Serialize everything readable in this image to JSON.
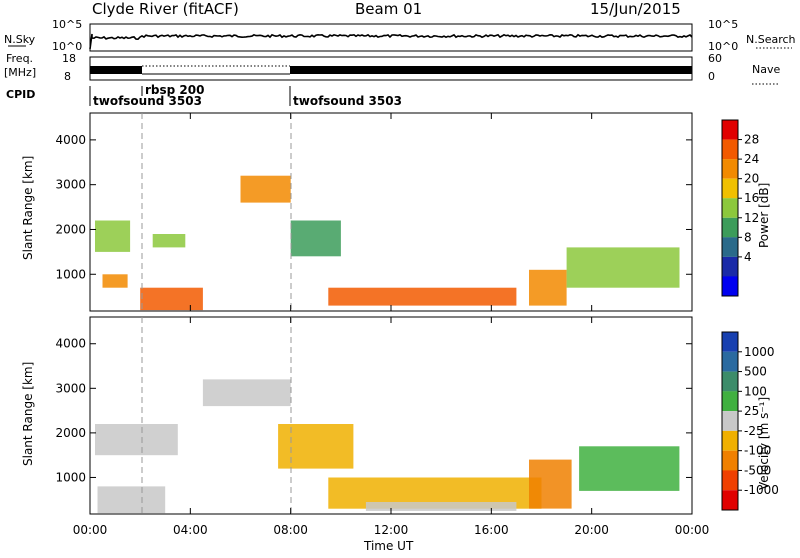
{
  "header": {
    "station": "Clyde River (fitACF)",
    "beam": "Beam 01",
    "date": "15/Jun/2015"
  },
  "noise_panel": {
    "left_label": "N.Sky",
    "left_ticks": [
      "10^5",
      "10^0"
    ],
    "right_label": "N.Search",
    "right_ticks": [
      "10^5",
      "10^0"
    ]
  },
  "freq_panel": {
    "left_label_1": "Freq.",
    "left_label_2": "[MHz]",
    "left_ticks": [
      "18",
      "8"
    ],
    "right_label": "Nave",
    "right_ticks": [
      "60",
      "0"
    ]
  },
  "cpid": {
    "label": "CPID",
    "segments": [
      {
        "name": "twofsound 3503",
        "start_hour": 0
      },
      {
        "name": "rbsp 200",
        "start_hour": 2
      },
      {
        "name": "twofsound 3503",
        "start_hour": 8
      }
    ]
  },
  "power_panel": {
    "ylabel": "Slant Range [km]",
    "yticks": [
      "4000",
      "3000",
      "2000",
      "1000"
    ],
    "colorbar_label": "Power [dB]",
    "colorbar_ticks": [
      "28",
      "24",
      "20",
      "16",
      "12",
      "8",
      "4"
    ],
    "colorbar_colors": [
      "#e00000",
      "#f25a00",
      "#f28a00",
      "#f0c000",
      "#8cc83c",
      "#3c9c5a",
      "#2a6a8a",
      "#1a2aa8",
      "#0000f0"
    ]
  },
  "velocity_panel": {
    "ylabel": "Slant Range [km]",
    "yticks": [
      "4000",
      "3000",
      "2000",
      "1000"
    ],
    "colorbar_label": "Velocity [m s⁻¹]",
    "colorbar_ticks": [
      "1000",
      "500",
      "100",
      "25",
      "-25",
      "-100",
      "-500",
      "-1000"
    ],
    "colorbar_colors": [
      "#1840b0",
      "#2a6aa0",
      "#3c8c6a",
      "#40b040",
      "#c8c8c8",
      "#f0b000",
      "#f08000",
      "#f04000",
      "#e00000"
    ]
  },
  "x_axis": {
    "label": "Time UT",
    "ticks": [
      "00:00",
      "04:00",
      "08:00",
      "12:00",
      "16:00",
      "20:00",
      "00:00"
    ]
  },
  "chart_data": [
    {
      "type": "heatmap",
      "title": "Power",
      "ylabel": "Slant Range [km]",
      "xlabel": "",
      "xlim_hours": [
        0,
        24
      ],
      "ylim_km": [
        180,
        4600
      ],
      "value_unit": "dB",
      "value_range": [
        0,
        30
      ],
      "patches": [
        {
          "hour": [
            0.2,
            1.6
          ],
          "km": [
            1500,
            2200
          ],
          "value": 16
        },
        {
          "hour": [
            0.5,
            1.5
          ],
          "km": [
            700,
            1000
          ],
          "value": 24
        },
        {
          "hour": [
            2.0,
            4.5
          ],
          "km": [
            200,
            700
          ],
          "value": 28
        },
        {
          "hour": [
            2.5,
            3.8
          ],
          "km": [
            1600,
            1900
          ],
          "value": 14
        },
        {
          "hour": [
            6.0,
            8.0
          ],
          "km": [
            2600,
            3200
          ],
          "value": 24
        },
        {
          "hour": [
            8.0,
            10.0
          ],
          "km": [
            1400,
            2200
          ],
          "value": 12
        },
        {
          "hour": [
            9.5,
            17.0
          ],
          "km": [
            300,
            700
          ],
          "value": 26
        },
        {
          "hour": [
            17.5,
            19.0
          ],
          "km": [
            300,
            1100
          ],
          "value": 22
        },
        {
          "hour": [
            19.0,
            23.5
          ],
          "km": [
            700,
            1600
          ],
          "value": 16
        }
      ]
    },
    {
      "type": "heatmap",
      "title": "Velocity",
      "ylabel": "Slant Range [km]",
      "xlabel": "Time UT",
      "xlim_hours": [
        0,
        24
      ],
      "ylim_km": [
        180,
        4600
      ],
      "value_unit": "m/s",
      "value_range": [
        -1000,
        1000
      ],
      "patches": [
        {
          "hour": [
            0.2,
            3.5
          ],
          "km": [
            1500,
            2200
          ],
          "value": 0
        },
        {
          "hour": [
            0.3,
            3.0
          ],
          "km": [
            200,
            800
          ],
          "value": 0
        },
        {
          "hour": [
            4.5,
            8.0
          ],
          "km": [
            2600,
            3200
          ],
          "value": 0
        },
        {
          "hour": [
            7.5,
            10.5
          ],
          "km": [
            1200,
            2200
          ],
          "value": -300
        },
        {
          "hour": [
            9.5,
            18.0
          ],
          "km": [
            300,
            1000
          ],
          "value": -200
        },
        {
          "hour": [
            11.0,
            17.0
          ],
          "km": [
            250,
            450
          ],
          "value": 50
        },
        {
          "hour": [
            17.5,
            19.2
          ],
          "km": [
            300,
            1400
          ],
          "value": -400
        },
        {
          "hour": [
            19.5,
            23.5
          ],
          "km": [
            700,
            1700
          ],
          "value": 150
        }
      ]
    }
  ]
}
